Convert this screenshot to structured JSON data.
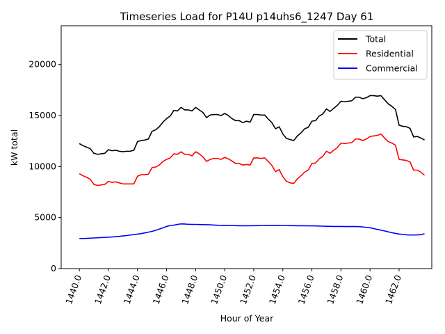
{
  "chart_data": {
    "type": "line",
    "title": "Timeseries Load for P14U p14uhs6_1247  Day 61",
    "xlabel": "Hour of Year",
    "ylabel": "kW total",
    "xlim": [
      1438.75,
      1464.25
    ],
    "ylim": [
      0,
      23800
    ],
    "xticks": [
      1440,
      1442,
      1444,
      1446,
      1448,
      1450,
      1452,
      1454,
      1456,
      1458,
      1460,
      1462
    ],
    "xtick_labels": [
      "1440.0",
      "1442.0",
      "1444.0",
      "1446.0",
      "1448.0",
      "1450.0",
      "1452.0",
      "1454.0",
      "1456.0",
      "1458.0",
      "1460.0",
      "1462.0"
    ],
    "yticks": [
      0,
      5000,
      10000,
      15000,
      20000
    ],
    "ytick_labels": [
      "0",
      "5000",
      "10000",
      "15000",
      "20000"
    ],
    "legend_position": "top-right",
    "x": [
      1440.0,
      1440.25,
      1440.5,
      1440.75,
      1441.0,
      1441.25,
      1441.5,
      1441.75,
      1442.0,
      1442.25,
      1442.5,
      1442.75,
      1443.0,
      1443.25,
      1443.5,
      1443.75,
      1444.0,
      1444.25,
      1444.5,
      1444.75,
      1445.0,
      1445.25,
      1445.5,
      1445.75,
      1446.0,
      1446.25,
      1446.5,
      1446.75,
      1447.0,
      1447.25,
      1447.5,
      1447.75,
      1448.0,
      1448.25,
      1448.5,
      1448.75,
      1449.0,
      1449.25,
      1449.5,
      1449.75,
      1450.0,
      1450.25,
      1450.5,
      1450.75,
      1451.0,
      1451.25,
      1451.5,
      1451.75,
      1452.0,
      1452.25,
      1452.5,
      1452.75,
      1453.0,
      1453.25,
      1453.5,
      1453.75,
      1454.0,
      1454.25,
      1454.5,
      1454.75,
      1455.0,
      1455.25,
      1455.5,
      1455.75,
      1456.0,
      1456.25,
      1456.5,
      1456.75,
      1457.0,
      1457.25,
      1457.5,
      1457.75,
      1458.0,
      1458.25,
      1458.5,
      1458.75,
      1459.0,
      1459.25,
      1459.5,
      1459.75,
      1460.0,
      1460.25,
      1460.5,
      1460.75,
      1461.0,
      1461.25,
      1461.5,
      1461.75,
      1462.0,
      1462.25,
      1462.5,
      1462.75,
      1463.0,
      1463.25,
      1463.5,
      1463.75
    ],
    "series": [
      {
        "name": "Total",
        "color": "#000000",
        "values": [
          12250,
          12050,
          11900,
          11750,
          11300,
          11200,
          11250,
          11300,
          11650,
          11550,
          11600,
          11500,
          11450,
          11500,
          11500,
          11600,
          12450,
          12550,
          12600,
          12700,
          13450,
          13600,
          13900,
          14350,
          14700,
          14950,
          15500,
          15450,
          15800,
          15550,
          15550,
          15450,
          15800,
          15550,
          15300,
          14800,
          15050,
          15100,
          15100,
          15000,
          15200,
          15000,
          14700,
          14500,
          14500,
          14300,
          14450,
          14350,
          15100,
          15100,
          15050,
          15050,
          14650,
          14300,
          13700,
          13900,
          13200,
          12750,
          12650,
          12550,
          13000,
          13300,
          13700,
          13850,
          14450,
          14500,
          14950,
          15150,
          15650,
          15400,
          15700,
          16000,
          16400,
          16350,
          16400,
          16450,
          16800,
          16800,
          16650,
          16750,
          16950,
          16950,
          16900,
          16950,
          16550,
          16150,
          15900,
          15600,
          14050,
          13950,
          13900,
          13750,
          12900,
          12950,
          12800,
          12600
        ]
      },
      {
        "name": "Residential",
        "color": "#ff0000",
        "values": [
          9300,
          9100,
          8950,
          8750,
          8250,
          8150,
          8200,
          8250,
          8550,
          8450,
          8500,
          8400,
          8300,
          8300,
          8300,
          8300,
          9050,
          9200,
          9200,
          9250,
          9900,
          9950,
          10150,
          10500,
          10700,
          10850,
          11250,
          11200,
          11450,
          11200,
          11200,
          11050,
          11450,
          11250,
          10950,
          10500,
          10700,
          10800,
          10800,
          10700,
          10900,
          10750,
          10550,
          10300,
          10300,
          10150,
          10200,
          10150,
          10850,
          10850,
          10800,
          10850,
          10500,
          10100,
          9500,
          9700,
          9000,
          8550,
          8400,
          8350,
          8800,
          9100,
          9450,
          9650,
          10300,
          10350,
          10750,
          11000,
          11500,
          11300,
          11600,
          11850,
          12300,
          12250,
          12300,
          12350,
          12700,
          12700,
          12550,
          12700,
          12950,
          13000,
          13050,
          13200,
          12800,
          12450,
          12300,
          12100,
          10700,
          10650,
          10600,
          10450,
          9650,
          9650,
          9450,
          9150
        ]
      },
      {
        "name": "Commercial",
        "color": "#0000ff",
        "values": [
          2950,
          2950,
          2960,
          2980,
          3000,
          3020,
          3040,
          3060,
          3080,
          3100,
          3130,
          3160,
          3200,
          3240,
          3290,
          3330,
          3380,
          3430,
          3500,
          3570,
          3650,
          3750,
          3870,
          4000,
          4130,
          4220,
          4260,
          4330,
          4380,
          4370,
          4340,
          4330,
          4330,
          4320,
          4310,
          4300,
          4290,
          4270,
          4250,
          4240,
          4230,
          4230,
          4220,
          4210,
          4200,
          4200,
          4200,
          4200,
          4210,
          4210,
          4220,
          4220,
          4230,
          4230,
          4230,
          4230,
          4220,
          4220,
          4210,
          4210,
          4200,
          4200,
          4200,
          4190,
          4190,
          4180,
          4170,
          4160,
          4150,
          4140,
          4130,
          4130,
          4130,
          4120,
          4120,
          4120,
          4120,
          4110,
          4080,
          4040,
          4000,
          3920,
          3840,
          3770,
          3690,
          3600,
          3520,
          3450,
          3390,
          3350,
          3310,
          3290,
          3290,
          3300,
          3320,
          3420
        ]
      }
    ]
  }
}
